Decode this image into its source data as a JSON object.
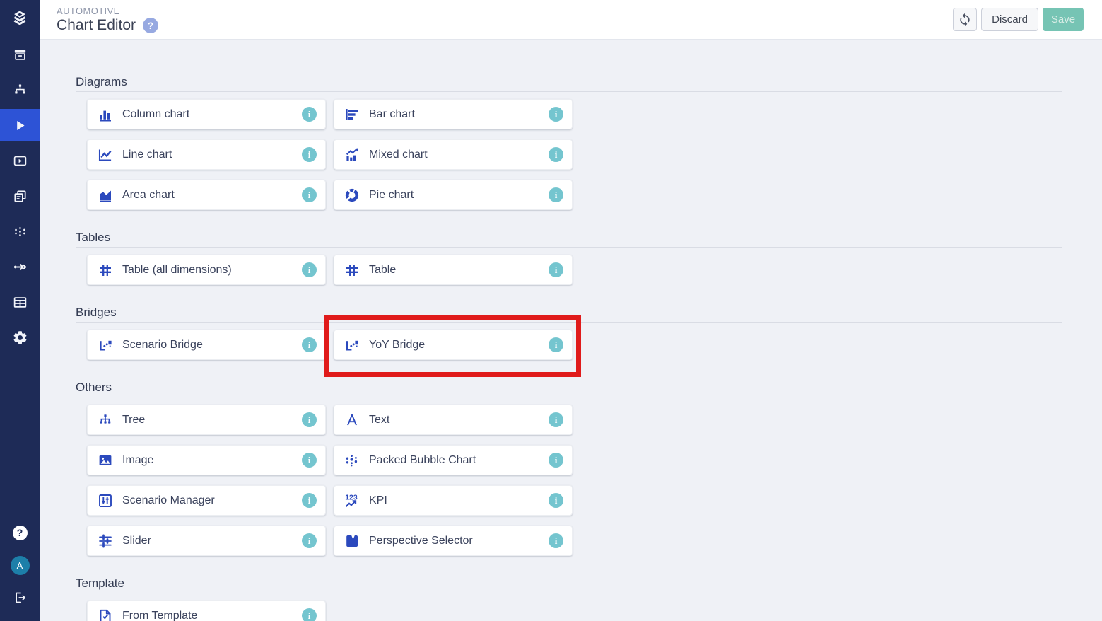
{
  "header": {
    "section_label": "AUTOMOTIVE",
    "title": "Chart Editor",
    "help_icon": "help-icon",
    "buttons": {
      "refresh_icon": "refresh-icon",
      "discard": "Discard",
      "save": "Save"
    }
  },
  "sidebar": {
    "logo_icon": "layers-logo-icon",
    "items": [
      {
        "name": "archive",
        "icon": "archive-icon",
        "active": false
      },
      {
        "name": "sitemap",
        "icon": "sitemap-icon",
        "active": false
      },
      {
        "name": "play",
        "icon": "play-icon",
        "active": true
      },
      {
        "name": "video",
        "icon": "video-play-icon",
        "active": false
      },
      {
        "name": "pages",
        "icon": "pages-icon",
        "active": false
      },
      {
        "name": "nodes",
        "icon": "dots-hierarchy-icon",
        "active": false
      },
      {
        "name": "flow",
        "icon": "arrow-right-icon",
        "active": false
      },
      {
        "name": "table",
        "icon": "table-icon",
        "active": false
      },
      {
        "name": "settings",
        "icon": "gear-icon",
        "active": false
      }
    ],
    "bottom": {
      "help_icon": "help-icon",
      "avatar_initial": "A",
      "logout_icon": "logout-icon"
    }
  },
  "sections": [
    {
      "title": "Diagrams",
      "items": [
        {
          "label": "Column chart",
          "icon": "column-chart-icon"
        },
        {
          "label": "Bar chart",
          "icon": "bar-chart-icon"
        },
        {
          "label": "Line chart",
          "icon": "line-chart-icon"
        },
        {
          "label": "Mixed chart",
          "icon": "mixed-chart-icon"
        },
        {
          "label": "Area chart",
          "icon": "area-chart-icon"
        },
        {
          "label": "Pie chart",
          "icon": "pie-chart-icon"
        }
      ]
    },
    {
      "title": "Tables",
      "items": [
        {
          "label": "Table (all dimensions)",
          "icon": "table-grid-icon"
        },
        {
          "label": "Table",
          "icon": "table-grid-icon"
        }
      ]
    },
    {
      "title": "Bridges",
      "items": [
        {
          "label": "Scenario Bridge",
          "icon": "bridge-icon"
        },
        {
          "label": "YoY Bridge",
          "icon": "bridge-icon",
          "highlighted": true
        }
      ]
    },
    {
      "title": "Others",
      "items": [
        {
          "label": "Tree",
          "icon": "tree-icon"
        },
        {
          "label": "Text",
          "icon": "text-icon"
        },
        {
          "label": "Image",
          "icon": "image-icon"
        },
        {
          "label": "Packed Bubble Chart",
          "icon": "packed-bubble-icon"
        },
        {
          "label": "Scenario Manager",
          "icon": "scenario-manager-icon"
        },
        {
          "label": "KPI",
          "icon": "kpi-icon"
        },
        {
          "label": "Slider",
          "icon": "slider-icon"
        },
        {
          "label": "Perspective Selector",
          "icon": "perspective-selector-icon"
        }
      ]
    },
    {
      "title": "Template",
      "items": [
        {
          "label": "From Template",
          "icon": "from-template-icon"
        }
      ]
    }
  ],
  "colors": {
    "sidebar_bg": "#1e2b57",
    "active_item_blue": "#2d53d6",
    "card_icon_blue": "#2b49bd",
    "info_teal": "#74c5cf",
    "save_teal": "#76c4b4",
    "highlight_red": "#e01b1b",
    "content_bg": "#eff1f6"
  }
}
